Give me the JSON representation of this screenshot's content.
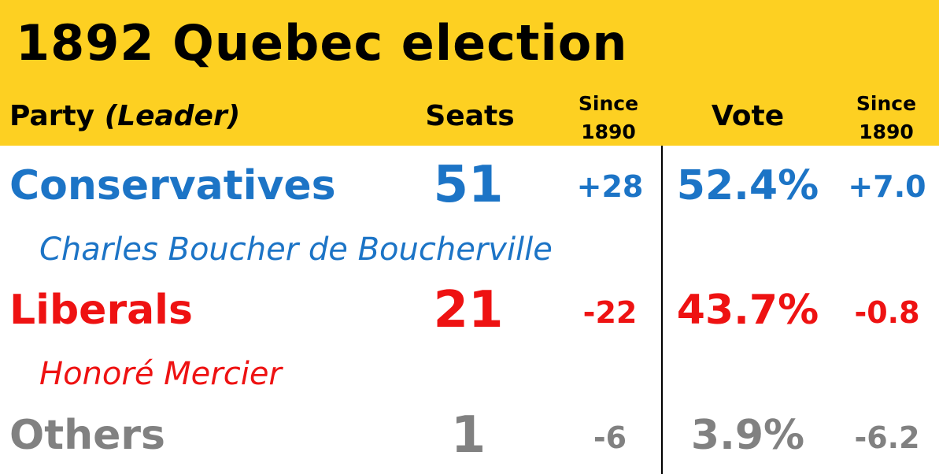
{
  "header": {
    "title": "1892 Quebec election",
    "columns": {
      "party": "Party",
      "leader": "(Leader)",
      "seats": "Seats",
      "seats_change": "Since 1890",
      "vote": "Vote",
      "vote_change": "Since 1890"
    }
  },
  "rows": [
    {
      "party": "Conservatives",
      "leader": "Charles Boucher de Boucherville",
      "seats": "51",
      "seats_change": "+28",
      "vote": "52.4%",
      "vote_change": "+7.0"
    },
    {
      "party": "Liberals",
      "leader": "Honoré Mercier",
      "seats": "21",
      "seats_change": "-22",
      "vote": "43.7%",
      "vote_change": "-0.8"
    },
    {
      "party": "Others",
      "seats": "1",
      "seats_change": "-6",
      "vote": "3.9%",
      "vote_change": "-6.2"
    }
  ]
}
